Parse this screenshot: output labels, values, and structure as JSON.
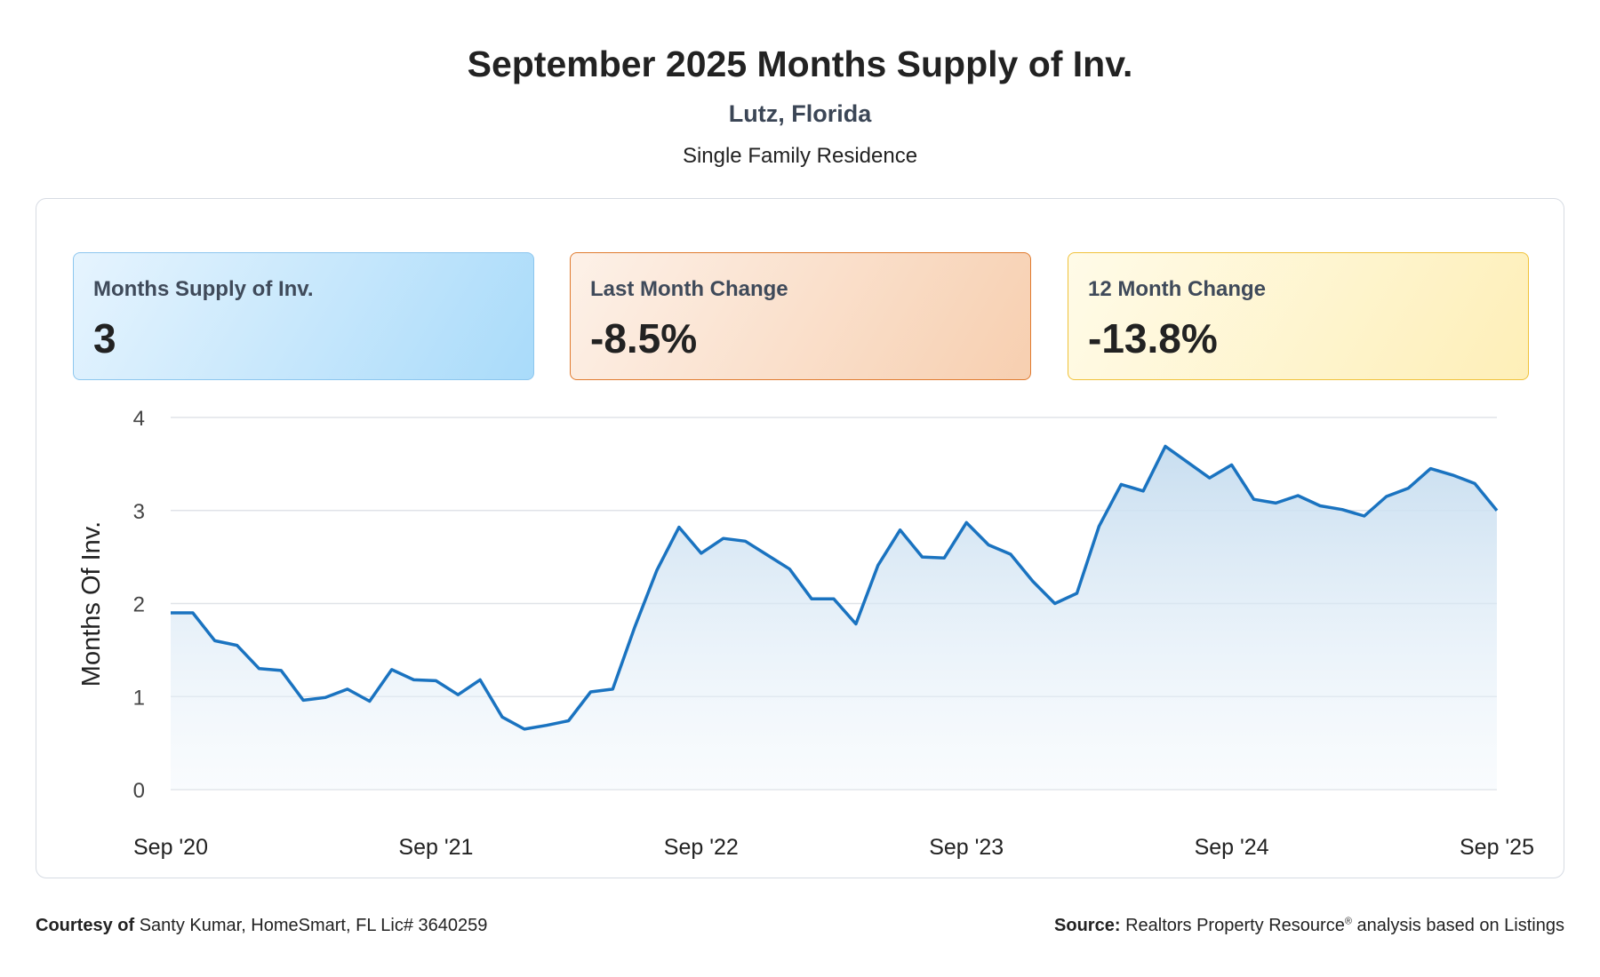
{
  "header": {
    "title": "September 2025 Months Supply of Inv.",
    "location": "Lutz, Florida",
    "property_type": "Single Family Residence"
  },
  "cards": [
    {
      "label": "Months Supply of Inv.",
      "value": "3"
    },
    {
      "label": "Last Month Change",
      "value": "-8.5%"
    },
    {
      "label": "12 Month Change",
      "value": "-13.8%"
    }
  ],
  "colors": {
    "line": "#1a73c0",
    "area_top": "#c5dcef",
    "grid": "#e0e3e8"
  },
  "chart_data": {
    "type": "area",
    "title": "",
    "ylabel": "Months Of Inv.",
    "xlabel": "",
    "ylim": [
      0,
      4
    ],
    "yticks": [
      "0",
      "1",
      "2",
      "3",
      "4"
    ],
    "xtick_labels": [
      "Sep '20",
      "Sep '21",
      "Sep '22",
      "Sep '23",
      "Sep '24",
      "Sep '25"
    ],
    "grid": true,
    "legend": "none",
    "series": [
      {
        "values": [
          1.9,
          1.9,
          1.6,
          1.55,
          1.3,
          1.28,
          0.96,
          0.99,
          1.08,
          0.95,
          1.29,
          1.18,
          1.17,
          1.02,
          1.18,
          0.78,
          0.65,
          0.69,
          0.74,
          1.05,
          1.08,
          1.75,
          2.36,
          2.82,
          2.54,
          2.7,
          2.67,
          2.52,
          2.37,
          2.05,
          2.05,
          1.78,
          2.41,
          2.79,
          2.5,
          2.49,
          2.87,
          2.63,
          2.53,
          2.24,
          2.0,
          2.11,
          2.83,
          3.28,
          3.21,
          3.69,
          3.52,
          3.35,
          3.49,
          3.12,
          3.08,
          3.16,
          3.05,
          3.01,
          2.94,
          3.15,
          3.24,
          3.45,
          3.38,
          3.29,
          3.0
        ]
      }
    ]
  },
  "footer": {
    "courtesy_label": "Courtesy of",
    "courtesy_text": "Santy Kumar, HomeSmart, FL Lic# 3640259",
    "source_label": "Source:",
    "source_text_1": "Realtors Property Resource",
    "source_reg": "®",
    "source_text_2": "analysis based on Listings"
  }
}
